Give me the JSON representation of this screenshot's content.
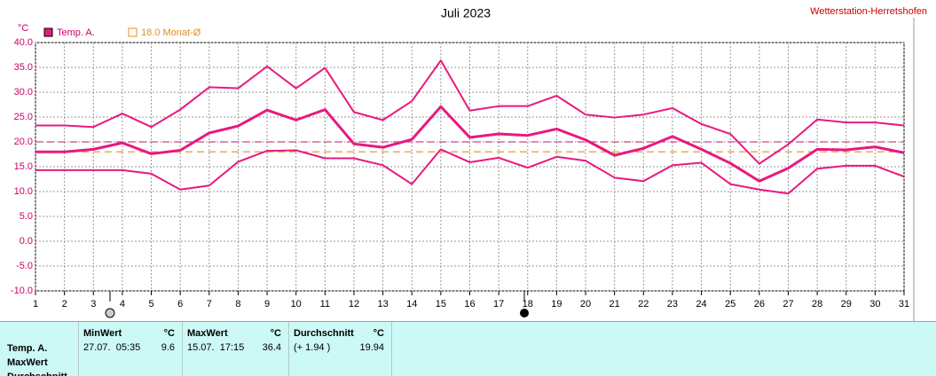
{
  "chart_data": {
    "type": "line",
    "title": "Juli 2023",
    "y_label": "°C",
    "x": [
      1,
      2,
      3,
      4,
      5,
      6,
      7,
      8,
      9,
      10,
      11,
      12,
      13,
      14,
      15,
      16,
      17,
      18,
      19,
      20,
      21,
      22,
      23,
      24,
      25,
      26,
      27,
      28,
      29,
      30,
      31
    ],
    "series": [
      {
        "color": "#e8197e",
        "width": 2,
        "values": [
          23.3,
          23.3,
          23.0,
          25.7,
          23.0,
          26.5,
          31.0,
          30.8,
          35.2,
          30.8,
          34.9,
          26.0,
          24.4,
          28.2,
          36.4,
          26.3,
          27.2,
          27.2,
          29.3,
          25.5,
          24.9,
          25.5,
          26.8,
          23.6,
          21.6,
          15.6,
          19.5,
          24.5,
          23.9,
          23.9,
          23.3
        ]
      },
      {
        "name": "Temp. A.",
        "color": "#e8197e",
        "width": 3,
        "values": [
          18.0,
          18.0,
          18.5,
          19.8,
          17.6,
          18.3,
          21.8,
          23.2,
          26.4,
          24.4,
          26.5,
          19.6,
          18.9,
          20.5,
          27.1,
          20.9,
          21.6,
          21.3,
          22.6,
          20.4,
          17.3,
          18.7,
          21.1,
          18.5,
          15.7,
          12.1,
          14.7,
          18.5,
          18.4,
          19.0,
          17.8
        ]
      },
      {
        "color": "#e8197e",
        "width": 2,
        "values": [
          14.3,
          14.3,
          14.3,
          14.3,
          13.6,
          10.4,
          11.2,
          16.0,
          18.2,
          18.3,
          16.7,
          16.7,
          15.3,
          11.5,
          18.5,
          15.9,
          16.8,
          14.8,
          17.0,
          16.2,
          12.8,
          12.1,
          15.3,
          15.8,
          11.5,
          10.4,
          9.6,
          14.6,
          15.2,
          15.2,
          13.0
        ]
      }
    ],
    "reference_lines": [
      {
        "value": 20,
        "color": "#d04090"
      },
      {
        "value": 18,
        "label": "18.0 Monat-Ø",
        "color": "#e09020"
      }
    ],
    "xlim": [
      1,
      31
    ],
    "xticks": [
      1,
      2,
      3,
      4,
      5,
      6,
      7,
      8,
      9,
      10,
      11,
      12,
      13,
      14,
      15,
      16,
      17,
      18,
      19,
      20,
      21,
      22,
      23,
      24,
      25,
      26,
      27,
      28,
      29,
      30,
      31
    ],
    "ylim": [
      -10,
      40
    ],
    "yticks": [
      {
        "value": -10,
        "label": "-10.0"
      },
      {
        "value": -5,
        "label": "-5.0"
      },
      {
        "value": 0,
        "label": "0.0"
      },
      {
        "value": 5,
        "label": "5.0"
      },
      {
        "value": 10,
        "label": "10.0"
      },
      {
        "value": 15,
        "label": "15.0"
      },
      {
        "value": 20,
        "label": "20.0"
      },
      {
        "value": 25,
        "label": "25.0"
      },
      {
        "value": 30,
        "label": "30.0"
      },
      {
        "value": 35,
        "label": "35.0"
      },
      {
        "value": 40,
        "label": "40.0"
      }
    ],
    "grid": true
  },
  "station": "Wetterstation-Herretshofen",
  "table": {
    "columns": [
      {
        "title": "MinWert",
        "unit": "°C"
      },
      {
        "title": "MaxWert",
        "unit": "°C"
      },
      {
        "title": "Durchschnitt",
        "unit": "°C"
      }
    ],
    "row_labels": [
      "Temp. A.",
      "MaxWert",
      "Durchschnitt"
    ],
    "cells": [
      [
        "27.07.  05:35",
        "9.6"
      ],
      [
        "15.07.  17:15",
        "36.4"
      ],
      [
        "(+ 1.94 )",
        "19.94"
      ]
    ]
  }
}
